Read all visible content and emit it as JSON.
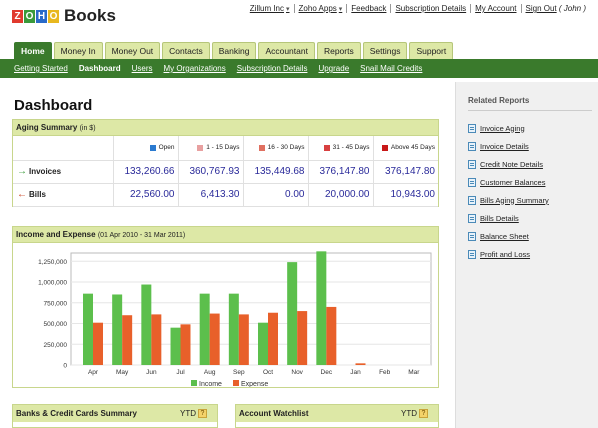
{
  "brand": {
    "logo_letters": [
      "Z",
      "O",
      "H",
      "O"
    ],
    "logo_colors": [
      "#e03a2e",
      "#3a9a3a",
      "#2a6ac8",
      "#e8b820"
    ],
    "name": "Books"
  },
  "toplinks": [
    {
      "label": "Zillum Inc",
      "dropdown": true
    },
    {
      "label": "Zoho Apps",
      "dropdown": true
    },
    {
      "label": "Feedback",
      "dropdown": false
    },
    {
      "label": "Subscription Details",
      "dropdown": false
    },
    {
      "label": "My Account",
      "dropdown": false
    },
    {
      "label": "Sign Out",
      "dropdown": false,
      "suffix": "( John )"
    }
  ],
  "tabs": [
    "Home",
    "Money In",
    "Money Out",
    "Contacts",
    "Banking",
    "Accountant",
    "Reports",
    "Settings",
    "Support"
  ],
  "active_tab": "Home",
  "subnav": [
    "Getting Started",
    "Dashboard",
    "Users",
    "My Organizations",
    "Subscription Details",
    "Upgrade",
    "Snail Mail Credits"
  ],
  "active_subnav": "Dashboard",
  "page_title": "Dashboard",
  "aging": {
    "title": "Aging Summary",
    "unit": "(in $)",
    "columns": [
      {
        "label": "Open",
        "color": "#2a7ad0"
      },
      {
        "label": "1 - 15 Days",
        "color": "#e8a0a0"
      },
      {
        "label": "16 - 30 Days",
        "color": "#e07060"
      },
      {
        "label": "31 - 45 Days",
        "color": "#d84040"
      },
      {
        "label": "Above 45 Days",
        "color": "#c81818"
      }
    ],
    "rows": [
      {
        "label": "Invoices",
        "arrow": "→",
        "arrow_color": "#3a9a3a",
        "values": [
          "133,260.66",
          "360,767.93",
          "135,449.68",
          "376,147.80",
          "376,147.80"
        ]
      },
      {
        "label": "Bills",
        "arrow": "←",
        "arrow_color": "#c84020",
        "values": [
          "22,560.00",
          "6,413.30",
          "0.00",
          "20,000.00",
          "10,943.00"
        ]
      }
    ]
  },
  "income_panel": {
    "title": "Income and Expense",
    "period": "(01 Apr 2010 - 31 Mar 2011)"
  },
  "chart_data": {
    "type": "bar",
    "categories": [
      "Apr",
      "May",
      "Jun",
      "Jul",
      "Aug",
      "Sep",
      "Oct",
      "Nov",
      "Dec",
      "Jan",
      "Feb",
      "Mar"
    ],
    "series": [
      {
        "name": "Income",
        "color": "#5cbf4c",
        "values": [
          860000,
          850000,
          970000,
          450000,
          860000,
          860000,
          510000,
          1240000,
          1370000,
          0,
          0,
          0
        ]
      },
      {
        "name": "Expense",
        "color": "#e8602a",
        "values": [
          510000,
          600000,
          610000,
          490000,
          620000,
          610000,
          630000,
          650000,
          700000,
          20000,
          0,
          0
        ]
      }
    ],
    "yticks": [
      "0",
      "250,000",
      "500,000",
      "750,000",
      "1,000,000",
      "1,250,000"
    ],
    "ylim": [
      0,
      1350000
    ],
    "legend": "bottom-center",
    "grid": true
  },
  "bottom_panels": [
    {
      "title": "Banks & Credit Cards Summary",
      "ytd": "YTD",
      "help": "?"
    },
    {
      "title": "Account Watchlist",
      "ytd": "YTD",
      "help": "?"
    }
  ],
  "sidebar": {
    "title": "Related Reports",
    "items": [
      "Invoice Aging",
      "Invoice Details",
      "Credit Note Details",
      "Customer Balances",
      "Bills Aging Summary",
      "Bills Details",
      "Balance Sheet",
      "Profit and Loss"
    ]
  }
}
